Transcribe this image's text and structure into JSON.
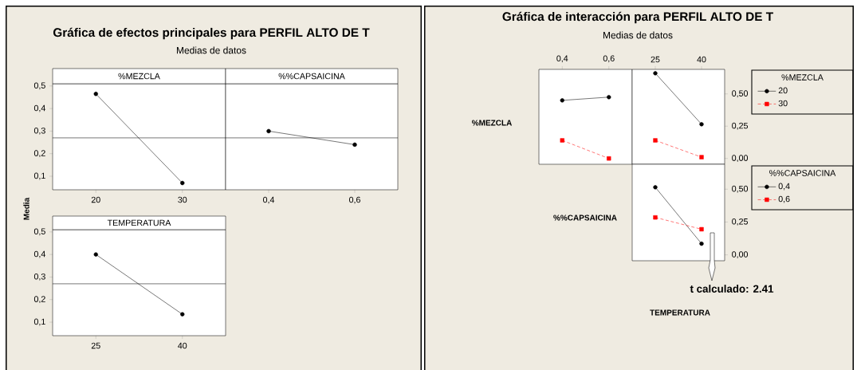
{
  "chart_data": [
    {
      "type": "line",
      "title": "Gráfica de efectos principales para PERFIL ALTO DE T",
      "subtitle": "Medias de datos",
      "xlabel": "%MEZCLA",
      "ylabel": "Media",
      "categories": [
        "20",
        "30"
      ],
      "values": [
        0.465,
        0.07
      ],
      "color": "#000000",
      "marker": "circle",
      "ylim": [
        0.04,
        0.51
      ],
      "yticks": [
        {
          "value": 0.1,
          "label": "0,1"
        },
        {
          "value": 0.2,
          "label": "0,2"
        },
        {
          "value": 0.3,
          "label": "0,3"
        },
        {
          "value": 0.4,
          "label": "0,4"
        },
        {
          "value": 0.5,
          "label": "0,5"
        }
      ],
      "ref_lines": [
        {
          "axis": "y",
          "value": 0.27
        }
      ]
    },
    {
      "type": "line",
      "xlabel": "%%CAPSAICINA",
      "categories": [
        "0,4",
        "0,6"
      ],
      "values": [
        0.3,
        0.24
      ],
      "color": "#000000",
      "marker": "circle",
      "ylim": [
        0.04,
        0.51
      ],
      "tick_labels": "x",
      "ref_lines": [
        {
          "axis": "y",
          "value": 0.27
        }
      ]
    },
    {
      "type": "line",
      "xlabel": "TEMPERATURA",
      "categories": [
        "25",
        "40"
      ],
      "values": [
        0.4,
        0.135
      ],
      "color": "#000000",
      "marker": "circle",
      "ylim": [
        0.04,
        0.51
      ],
      "yticks": [
        {
          "value": 0.1,
          "label": "0,1"
        },
        {
          "value": 0.2,
          "label": "0,2"
        },
        {
          "value": 0.3,
          "label": "0,3"
        },
        {
          "value": 0.4,
          "label": "0,4"
        },
        {
          "value": 0.5,
          "label": "0,5"
        }
      ],
      "ref_lines": [
        {
          "axis": "y",
          "value": 0.27
        }
      ]
    },
    {
      "type": "line",
      "title": "Gráfica de interacción para PERFIL ALTO DE T",
      "subtitle": "Medias de datos",
      "ylabel": "%MEZCLA",
      "categories": [
        "0,4",
        "0,6"
      ],
      "series": [
        {
          "color": "#000000",
          "marker": "circle",
          "line_style": "solid",
          "values": [
            0.45,
            0.475
          ]
        },
        {
          "color": "#ff0000",
          "marker": "square",
          "line_style": "dashed",
          "values": [
            0.14,
            0.0
          ]
        }
      ],
      "ylim": [
        -0.045,
        0.69
      ],
      "tick_labels": "x"
    },
    {
      "type": "line",
      "legend_title": "%MEZCLA",
      "legend": "right",
      "categories": [
        "25",
        "40"
      ],
      "series": [
        {
          "name": "20",
          "color": "#000000",
          "marker": "circle",
          "line_style": "solid",
          "values": [
            0.66,
            0.265
          ]
        },
        {
          "name": "30",
          "color": "#ff0000",
          "marker": "square",
          "line_style": "dashed",
          "values": [
            0.14,
            0.01
          ]
        }
      ],
      "ylim": [
        -0.045,
        0.69
      ],
      "yticks": [
        {
          "value": 0.0,
          "label": "0,00"
        },
        {
          "value": 0.25,
          "label": "0,25"
        },
        {
          "value": 0.5,
          "label": "0,50"
        }
      ]
    },
    {
      "type": "line",
      "legend_title": "%%CAPSAICINA",
      "legend": "right",
      "ylabel": "%%CAPSAICINA",
      "xlabel": "TEMPERATURA",
      "categories": [
        "25",
        "40"
      ],
      "series": [
        {
          "name": "0,4",
          "color": "#000000",
          "marker": "circle",
          "line_style": "solid",
          "values": [
            0.515,
            0.085
          ]
        },
        {
          "name": "0,6",
          "color": "#ff0000",
          "marker": "square",
          "line_style": "dashed",
          "values": [
            0.285,
            0.195
          ]
        }
      ],
      "ylim": [
        -0.045,
        0.69
      ],
      "yticks": [
        {
          "value": 0.0,
          "label": "0,00"
        },
        {
          "value": 0.25,
          "label": "0,25"
        },
        {
          "value": 0.5,
          "label": "0,50"
        }
      ],
      "tick_labels": "y",
      "annotations": [
        "t calculado: 2.41"
      ]
    }
  ]
}
